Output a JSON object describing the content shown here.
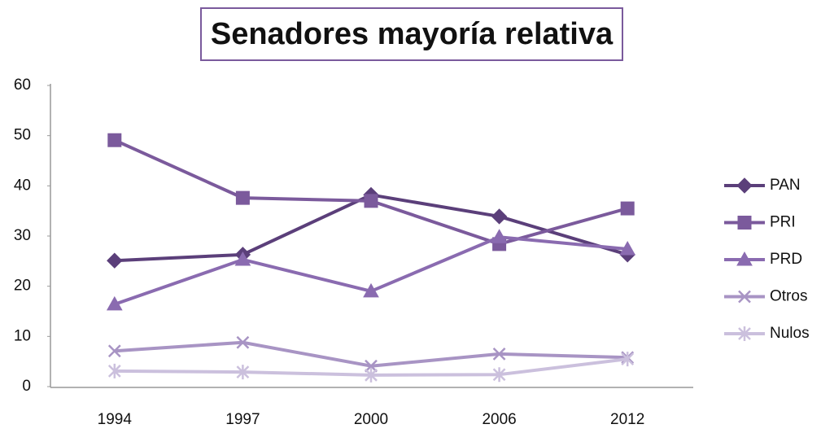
{
  "chart_data": {
    "type": "line",
    "title": "Senadores mayoría relativa",
    "categories": [
      "1994",
      "1997",
      "2000",
      "2006",
      "2012"
    ],
    "series": [
      {
        "name": "PAN",
        "color": "#5b3f7a",
        "marker": "diamond",
        "values": [
          25.1,
          26.3,
          38.2,
          33.9,
          26.3
        ]
      },
      {
        "name": "PRI",
        "color": "#7b5a9c",
        "marker": "square",
        "values": [
          49.1,
          37.6,
          37.0,
          28.4,
          35.5
        ]
      },
      {
        "name": "PRD",
        "color": "#8a6bb0",
        "marker": "triangle",
        "values": [
          16.4,
          25.3,
          19.0,
          29.8,
          27.4
        ]
      },
      {
        "name": "Otros",
        "color": "#a894c4",
        "marker": "x",
        "values": [
          7.1,
          8.8,
          4.1,
          6.5,
          5.8
        ]
      },
      {
        "name": "Nulos",
        "color": "#cbc0dd",
        "marker": "star",
        "values": [
          3.1,
          2.9,
          2.3,
          2.4,
          5.5
        ]
      }
    ],
    "ylim": [
      0,
      60
    ],
    "yticks": [
      0,
      10,
      20,
      30,
      40,
      50,
      60
    ],
    "grid": false,
    "legend": "right"
  }
}
